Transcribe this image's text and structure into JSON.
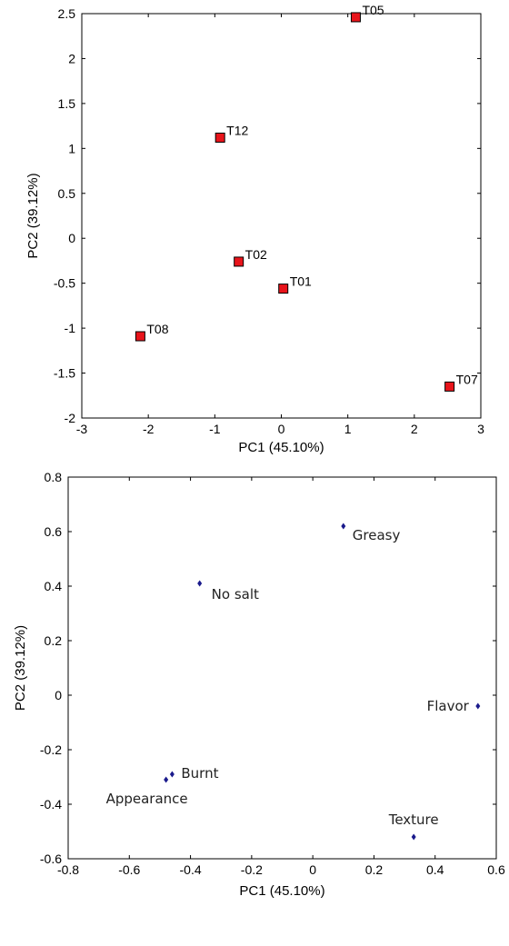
{
  "chart_data": [
    {
      "type": "scatter",
      "title": "",
      "xlabel": "PC1 (45.10%)",
      "ylabel": "PC2 (39.12%)",
      "xlim": [
        -3,
        3
      ],
      "ylim": [
        -2,
        2.5
      ],
      "xticks": [
        -3,
        -2,
        -1,
        0,
        1,
        2,
        3
      ],
      "yticks": [
        -2,
        -1.5,
        -1,
        -0.5,
        0,
        0.5,
        1,
        1.5,
        2,
        2.5
      ],
      "grid": false,
      "marker": "square",
      "marker_color": "#e8141b",
      "points": [
        {
          "label": "T05",
          "x": 1.12,
          "y": 2.46
        },
        {
          "label": "T12",
          "x": -0.92,
          "y": 1.12
        },
        {
          "label": "T02",
          "x": -0.64,
          "y": -0.26
        },
        {
          "label": "T01",
          "x": 0.03,
          "y": -0.56
        },
        {
          "label": "T08",
          "x": -2.12,
          "y": -1.09
        },
        {
          "label": "T07",
          "x": 2.53,
          "y": -1.65
        }
      ]
    },
    {
      "type": "scatter",
      "title": "",
      "xlabel": "PC1 (45.10%)",
      "ylabel": "PC2 (39.12%)",
      "xlim": [
        -0.8,
        0.6
      ],
      "ylim": [
        -0.6,
        0.8
      ],
      "xticks": [
        -0.8,
        -0.6,
        -0.4,
        -0.2,
        0,
        0.2,
        0.4,
        0.6
      ],
      "yticks": [
        -0.6,
        -0.4,
        -0.2,
        0,
        0.2,
        0.4,
        0.6,
        0.8
      ],
      "grid": false,
      "marker": "diamond",
      "marker_color": "#1a1a8c",
      "points": [
        {
          "label": "Greasy",
          "x": 0.1,
          "y": 0.62
        },
        {
          "label": "No salt",
          "x": -0.37,
          "y": 0.41
        },
        {
          "label": "Flavor",
          "x": 0.54,
          "y": -0.04
        },
        {
          "label": "Burnt",
          "x": -0.46,
          "y": -0.29
        },
        {
          "label": "Appearance",
          "x": -0.48,
          "y": -0.31
        },
        {
          "label": "Texture",
          "x": 0.33,
          "y": -0.52
        }
      ]
    }
  ]
}
